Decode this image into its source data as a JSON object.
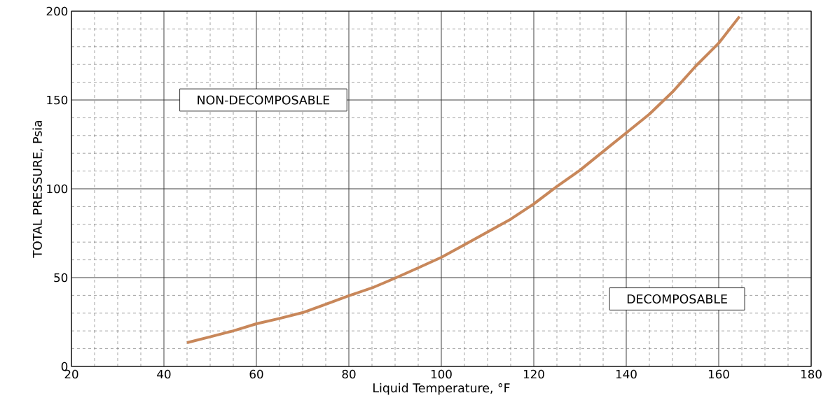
{
  "chart_data": {
    "type": "line",
    "xlabel": "Liquid Temperature, °F",
    "ylabel": "TOTAL PRESSURE, Psia",
    "x": [
      45,
      50,
      55,
      60,
      65,
      70,
      75,
      80,
      85,
      90,
      95,
      100,
      105,
      110,
      115,
      120,
      125,
      130,
      135,
      140,
      145,
      150,
      155,
      160,
      164.5
    ],
    "series": [
      {
        "color": "#c8875a",
        "values": [
          13.4,
          16.7,
          20,
          24,
          27,
          30.3,
          35,
          39.8,
          44.2,
          49.7,
          55.5,
          61.4,
          68.5,
          75.7,
          82.9,
          91.5,
          101.3,
          110.5,
          121,
          131.5,
          142,
          154.5,
          169,
          182,
          197
        ]
      }
    ],
    "xlim": [
      20,
      180
    ],
    "ylim": [
      0,
      200
    ],
    "xticks": [
      20,
      40,
      60,
      80,
      100,
      120,
      140,
      160,
      180
    ],
    "yticks": [
      0,
      50,
      100,
      150,
      200
    ],
    "grid": true,
    "marker": "none",
    "line_style": "solid",
    "annotations": [
      "NON-DECOMPOSABLE",
      "DECOMPOSABLE"
    ]
  }
}
